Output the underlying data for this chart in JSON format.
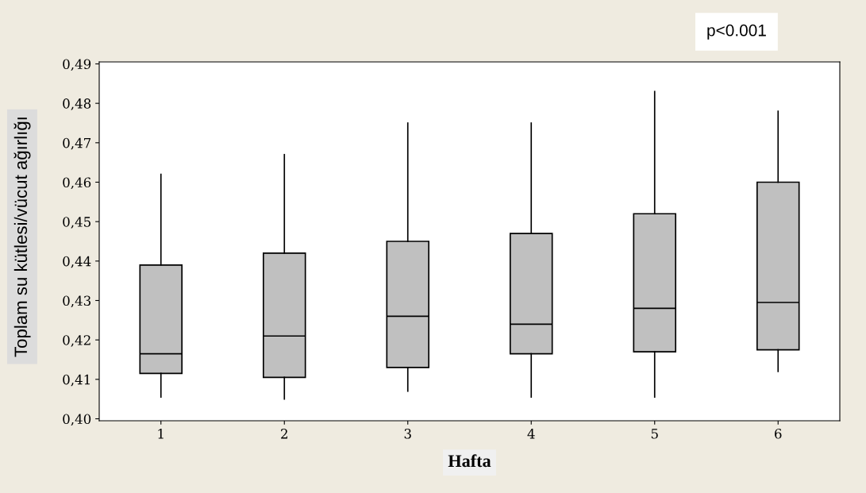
{
  "chart_data": {
    "type": "box",
    "xlabel": "Hafta",
    "ylabel": "Toplam su kütlesi/vücut ağırlığı",
    "annotations": [
      "p<0.001"
    ],
    "categories": [
      "1",
      "2",
      "3",
      "4",
      "5",
      "6"
    ],
    "color": "#c0c0c0",
    "boxes": [
      {
        "low": 0.4055,
        "q1": 0.4115,
        "median": 0.4165,
        "q3": 0.439,
        "high": 0.462
      },
      {
        "low": 0.405,
        "q1": 0.4105,
        "median": 0.421,
        "q3": 0.442,
        "high": 0.467
      },
      {
        "low": 0.407,
        "q1": 0.413,
        "median": 0.426,
        "q3": 0.445,
        "high": 0.475
      },
      {
        "low": 0.4055,
        "q1": 0.4165,
        "median": 0.424,
        "q3": 0.447,
        "high": 0.475
      },
      {
        "low": 0.4055,
        "q1": 0.417,
        "median": 0.428,
        "q3": 0.452,
        "high": 0.483
      },
      {
        "low": 0.412,
        "q1": 0.4175,
        "median": 0.4295,
        "q3": 0.46,
        "high": 0.478
      }
    ],
    "ylim": [
      0.3995,
      0.4905
    ],
    "yticks": [
      {
        "value": 0.4,
        "label": "0,40"
      },
      {
        "value": 0.41,
        "label": "0,41"
      },
      {
        "value": 0.42,
        "label": "0,42"
      },
      {
        "value": 0.43,
        "label": "0,43"
      },
      {
        "value": 0.44,
        "label": "0,44"
      },
      {
        "value": 0.45,
        "label": "0,45"
      },
      {
        "value": 0.46,
        "label": "0,46"
      },
      {
        "value": 0.47,
        "label": "0,47"
      },
      {
        "value": 0.48,
        "label": "0,48"
      },
      {
        "value": 0.49,
        "label": "0,49"
      }
    ],
    "grid": false
  }
}
